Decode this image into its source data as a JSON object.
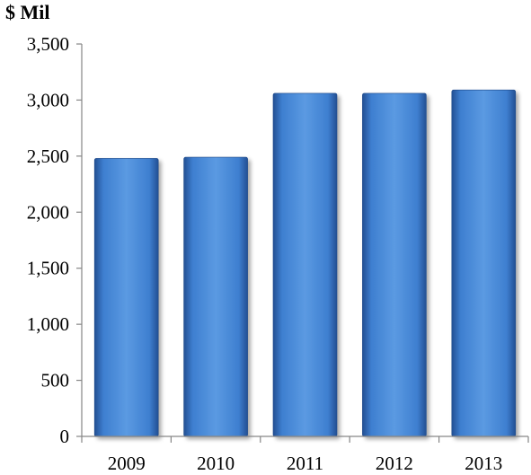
{
  "chart_data": {
    "type": "bar",
    "unit_label": "$ Mil",
    "categories": [
      "2009",
      "2010",
      "2011",
      "2012",
      "2013"
    ],
    "values": [
      2480,
      2490,
      3060,
      3060,
      3090
    ],
    "y_ticks": [
      0,
      500,
      1000,
      1500,
      2000,
      2500,
      3000,
      3500
    ],
    "y_tick_labels": [
      "0",
      "500",
      "1,000",
      "1,500",
      "2,000",
      "2,500",
      "3,000",
      "3,500"
    ],
    "ylim": [
      0,
      3500
    ],
    "grid": false,
    "legend": "none",
    "colors": {
      "bar_light": "#5b9ae2",
      "bar_mid": "#3e7fd0",
      "bar_dark": "#234f93",
      "axis": "#868686"
    }
  }
}
